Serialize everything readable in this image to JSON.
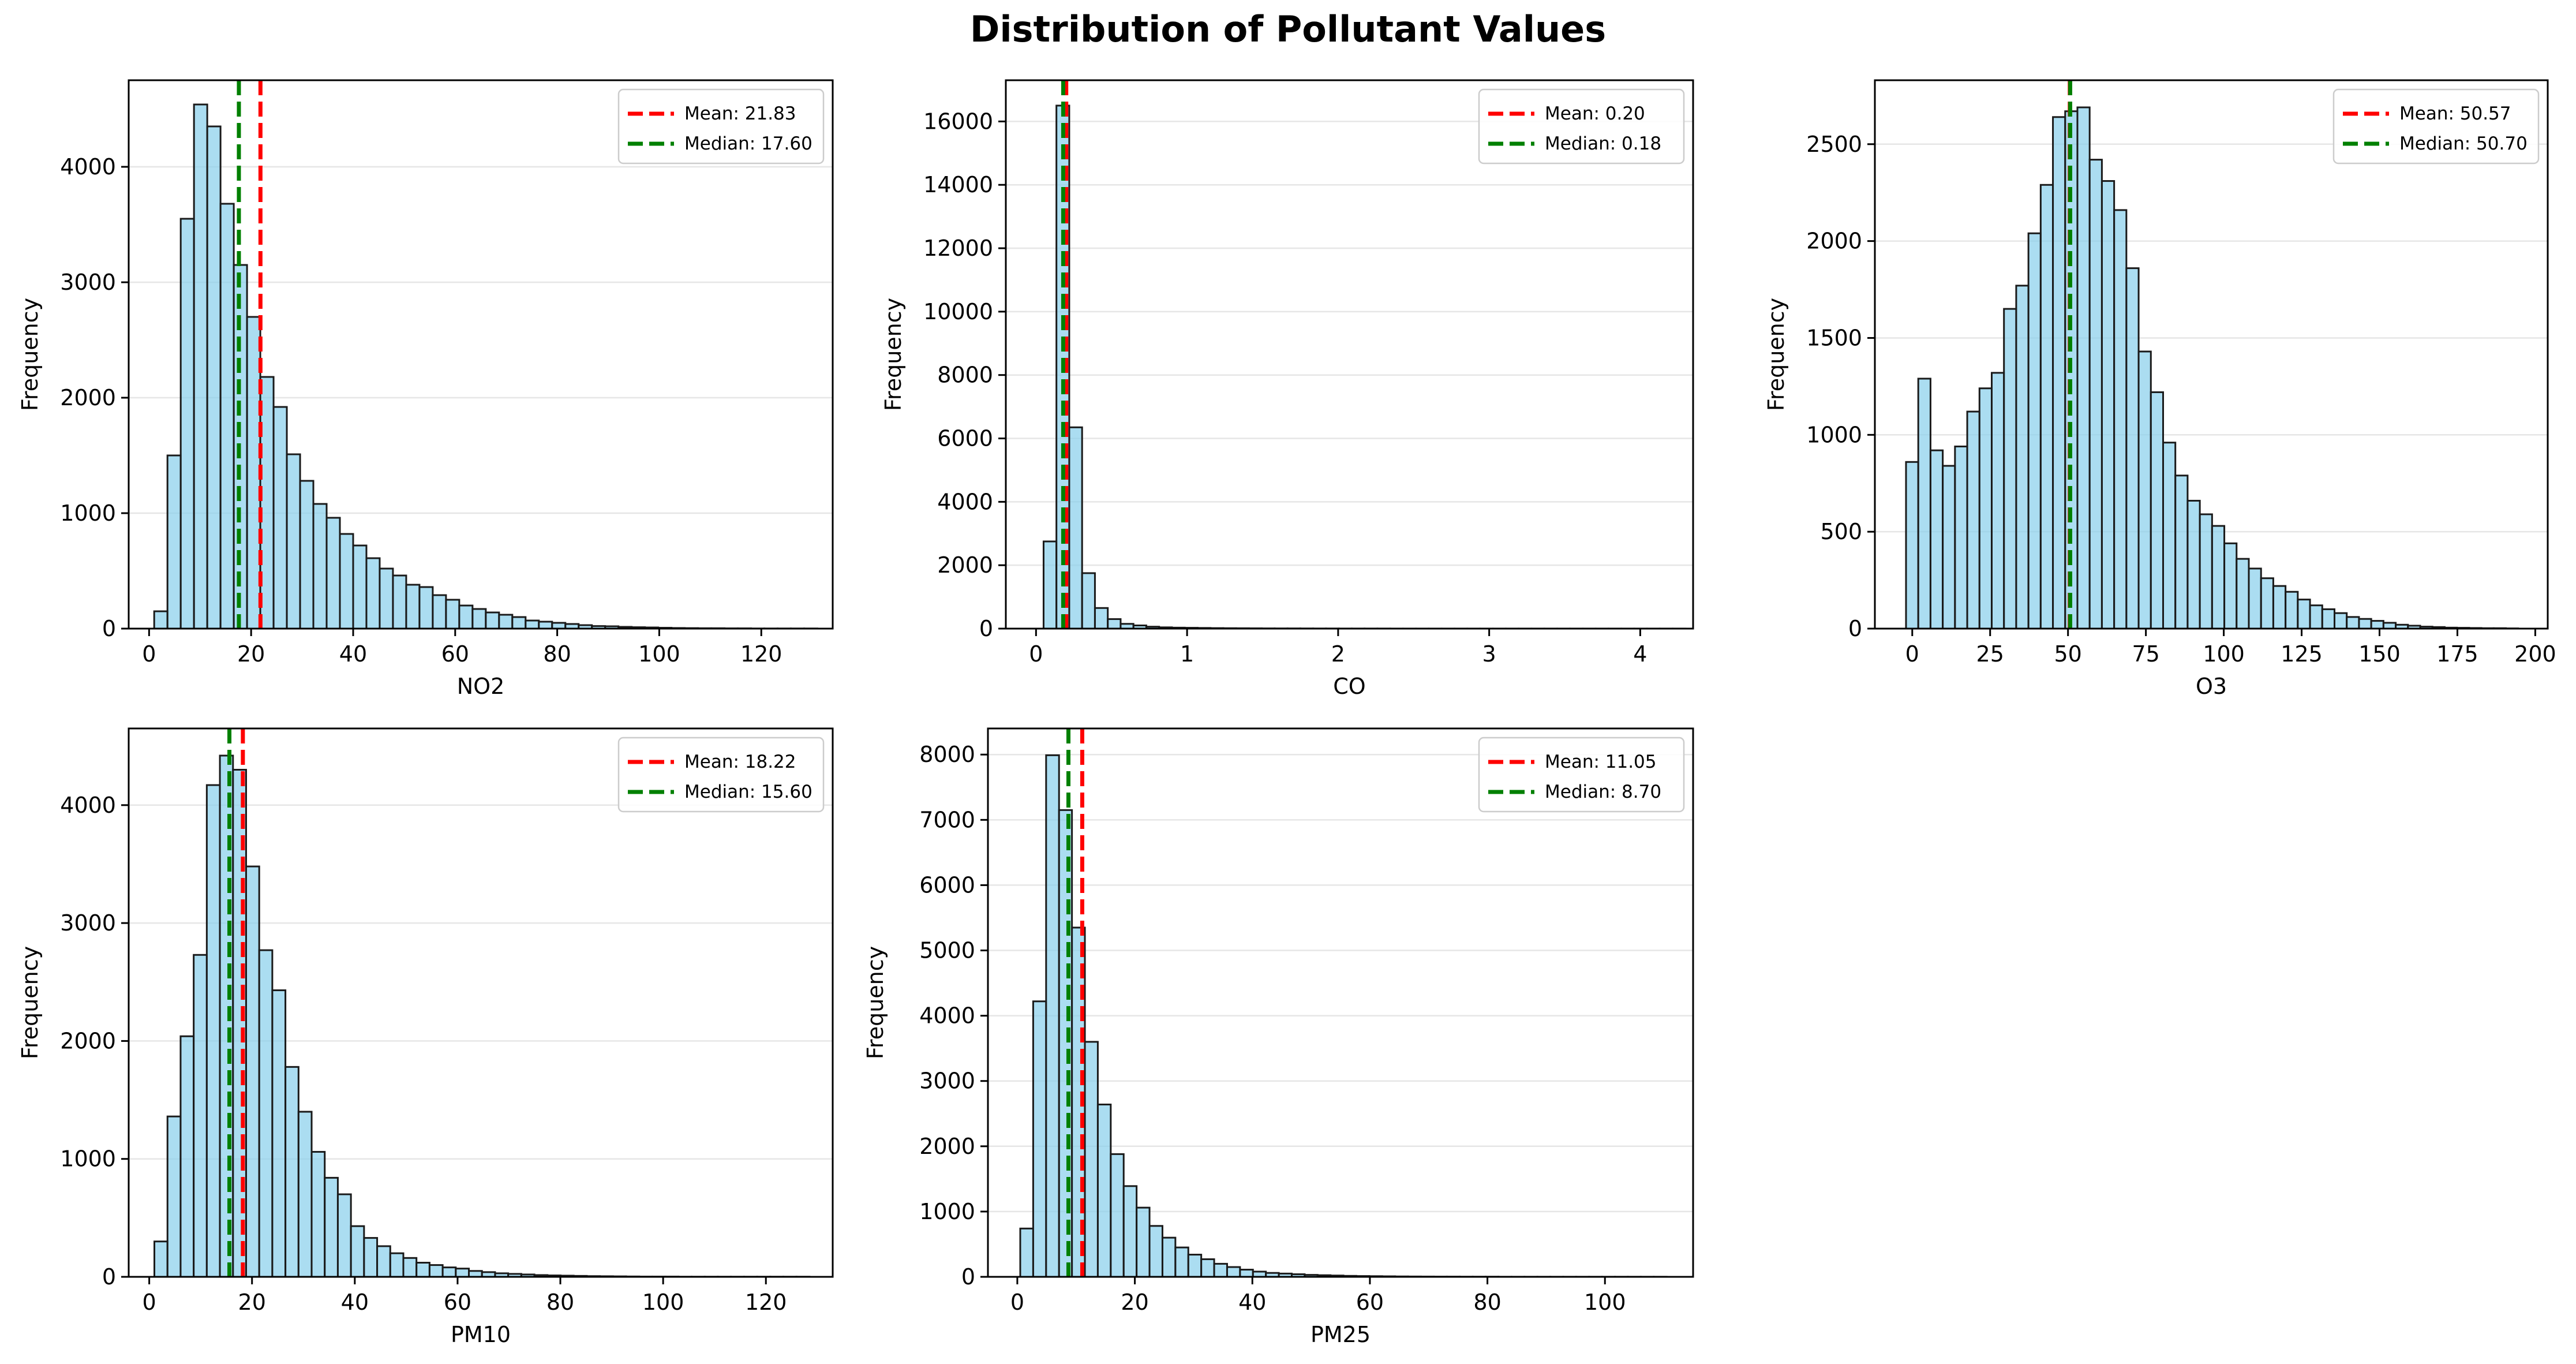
{
  "figure": {
    "title": "Distribution of Pollutant Values",
    "colors": {
      "bar_fill": "#87ceeb",
      "bar_edge": "#1a1a1a",
      "mean_line": "#ff0000",
      "median_line": "#008000",
      "grid": "#e6e6e6",
      "axes": "#000000"
    }
  },
  "chart_data": [
    {
      "type": "bar",
      "title": "",
      "xlabel": "NO2",
      "ylabel": "Frequency",
      "xlim": [
        -4,
        134
      ],
      "ylim": [
        0,
        4750
      ],
      "xticks": [
        0,
        20,
        40,
        60,
        80,
        100,
        120
      ],
      "yticks": [
        0,
        1000,
        2000,
        3000,
        4000
      ],
      "bin_start": 1,
      "bin_width": 2.6,
      "values": [
        150,
        1500,
        3550,
        4540,
        4350,
        3680,
        3150,
        2700,
        2180,
        1920,
        1510,
        1280,
        1080,
        960,
        820,
        720,
        610,
        520,
        460,
        380,
        360,
        290,
        250,
        200,
        170,
        140,
        120,
        100,
        70,
        60,
        50,
        40,
        30,
        22,
        20,
        15,
        12,
        10,
        7,
        5,
        4,
        3,
        3,
        2,
        2,
        1,
        1,
        1,
        1,
        1
      ],
      "mean": 21.83,
      "median": 17.6,
      "mean_label": "Mean: 21.83",
      "median_label": "Median: 17.60",
      "grid": "y",
      "legend": "top-right"
    },
    {
      "type": "bar",
      "title": "",
      "xlabel": "CO",
      "ylabel": "Frequency",
      "xlim": [
        -0.2,
        4.35
      ],
      "ylim": [
        0,
        17300
      ],
      "xticks": [
        0,
        1,
        2,
        3,
        4
      ],
      "yticks": [
        0,
        2000,
        4000,
        6000,
        8000,
        10000,
        12000,
        14000,
        16000
      ],
      "bin_start": 0.05,
      "bin_width": 0.085,
      "values": [
        2750,
        16500,
        6350,
        1750,
        650,
        300,
        150,
        100,
        60,
        40,
        30,
        25,
        20,
        15,
        12,
        10,
        8,
        6,
        5,
        5,
        4,
        3,
        3,
        2,
        2,
        2,
        2,
        1,
        1,
        1,
        1,
        1,
        1,
        1,
        1,
        1,
        1,
        1,
        1,
        1,
        1,
        1,
        1,
        1,
        1,
        1,
        1,
        1,
        1,
        1
      ],
      "mean": 0.2,
      "median": 0.18,
      "mean_label": "Mean: 0.20",
      "median_label": "Median: 0.18",
      "grid": "y",
      "legend": "top-right"
    },
    {
      "type": "bar",
      "title": "",
      "xlabel": "O3",
      "ylabel": "Frequency",
      "xlim": [
        -12,
        204
      ],
      "ylim": [
        0,
        2830
      ],
      "xticks": [
        0,
        25,
        50,
        75,
        100,
        125,
        150,
        175,
        200
      ],
      "yticks": [
        0,
        500,
        1000,
        1500,
        2000,
        2500
      ],
      "bin_start": -2,
      "bin_width": 3.93,
      "values": [
        860,
        1290,
        920,
        840,
        940,
        1120,
        1240,
        1320,
        1650,
        1770,
        2040,
        2290,
        2640,
        2670,
        2690,
        2420,
        2310,
        2160,
        1860,
        1430,
        1220,
        960,
        790,
        660,
        590,
        530,
        440,
        360,
        310,
        260,
        220,
        190,
        150,
        120,
        100,
        80,
        60,
        50,
        40,
        30,
        20,
        15,
        10,
        8,
        5,
        4,
        3,
        2,
        2,
        1
      ],
      "mean": 50.57,
      "median": 50.7,
      "mean_label": "Mean: 50.57",
      "median_label": "Median: 50.70",
      "grid": "y",
      "legend": "top-right"
    },
    {
      "type": "bar",
      "title": "",
      "xlabel": "PM10",
      "ylabel": "Frequency",
      "xlim": [
        -4,
        133
      ],
      "ylim": [
        0,
        4650
      ],
      "xticks": [
        0,
        20,
        40,
        60,
        80,
        100,
        120
      ],
      "yticks": [
        0,
        1000,
        2000,
        3000,
        4000
      ],
      "bin_start": 1,
      "bin_width": 2.55,
      "values": [
        300,
        1360,
        2040,
        2730,
        4170,
        4420,
        4300,
        3480,
        2770,
        2430,
        1780,
        1400,
        1060,
        840,
        700,
        430,
        330,
        260,
        200,
        160,
        120,
        100,
        80,
        70,
        50,
        40,
        30,
        25,
        20,
        15,
        12,
        10,
        8,
        6,
        5,
        4,
        3,
        2,
        2,
        2,
        1,
        1,
        1,
        1,
        1,
        1,
        1,
        1,
        1,
        1
      ],
      "mean": 18.22,
      "median": 15.6,
      "mean_label": "Mean: 18.22",
      "median_label": "Median: 15.60",
      "grid": "y",
      "legend": "top-right"
    },
    {
      "type": "bar",
      "title": "",
      "xlabel": "PM25",
      "ylabel": "Frequency",
      "xlim": [
        -5,
        115
      ],
      "ylim": [
        0,
        8400
      ],
      "xticks": [
        0,
        20,
        40,
        60,
        80,
        100
      ],
      "yticks": [
        0,
        1000,
        2000,
        3000,
        4000,
        5000,
        6000,
        7000,
        8000
      ],
      "bin_start": 0.5,
      "bin_width": 2.2,
      "values": [
        740,
        4220,
        7990,
        7150,
        5350,
        3600,
        2640,
        1880,
        1390,
        1060,
        780,
        600,
        450,
        340,
        270,
        200,
        150,
        110,
        80,
        60,
        50,
        40,
        30,
        25,
        20,
        15,
        12,
        10,
        8,
        6,
        5,
        4,
        3,
        3,
        2,
        2,
        2,
        1,
        1,
        1,
        1,
        1,
        1,
        1,
        1,
        1,
        1,
        1,
        1,
        1
      ],
      "mean": 11.05,
      "median": 8.7,
      "mean_label": "Mean: 11.05",
      "median_label": "Median: 8.70",
      "grid": "y",
      "legend": "top-right"
    }
  ]
}
